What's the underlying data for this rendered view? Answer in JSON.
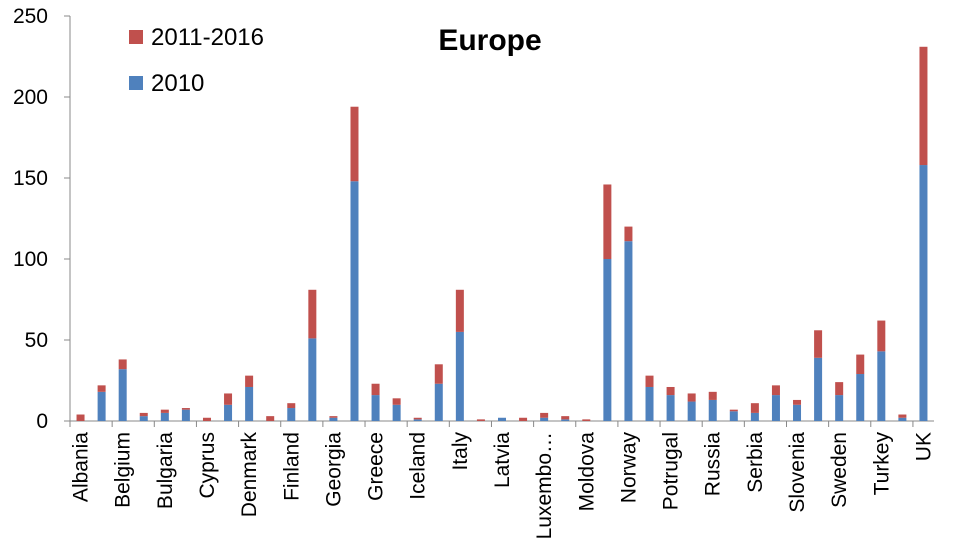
{
  "chart_data": {
    "type": "bar",
    "stacked": true,
    "title": "Europe",
    "xlabel": "",
    "ylabel": "",
    "ylim": [
      0,
      250
    ],
    "yticks": [
      0,
      50,
      100,
      150,
      200,
      250
    ],
    "grid": false,
    "legend_position": "top-left",
    "categories": [
      "Albania",
      "",
      "Belgium",
      "",
      "Bulgaria",
      "",
      "Cyprus",
      "",
      "Denmark",
      "",
      "Finland",
      "",
      "Georgia",
      "",
      "Greece",
      "",
      "Iceland",
      "",
      "Italy",
      "",
      "Latvia",
      "",
      "Luxembo…",
      "",
      "Moldova",
      "",
      "Norway",
      "",
      "Potrugal",
      "",
      "Russia",
      "",
      "Serbia",
      "",
      "Slovenia",
      "",
      "Sweden",
      "",
      "Turkey",
      "",
      "UK"
    ],
    "series": [
      {
        "name": "2010",
        "color": "#4f81bd",
        "values": [
          0,
          18,
          32,
          3,
          5,
          7,
          0,
          10,
          21,
          0,
          8,
          51,
          2,
          148,
          16,
          10,
          1,
          23,
          55,
          0,
          2,
          0,
          2,
          1,
          0,
          100,
          111,
          21,
          16,
          12,
          13,
          6,
          5,
          16,
          10,
          39,
          16,
          29,
          43,
          2,
          158
        ]
      },
      {
        "name": "2011-2016",
        "color": "#c0504d",
        "values": [
          4,
          4,
          6,
          2,
          2,
          1,
          2,
          7,
          7,
          3,
          3,
          30,
          1,
          46,
          7,
          4,
          1,
          12,
          26,
          1,
          0,
          2,
          3,
          2,
          1,
          46,
          9,
          7,
          5,
          5,
          5,
          1,
          6,
          6,
          3,
          17,
          8,
          12,
          19,
          2,
          73
        ]
      }
    ]
  }
}
